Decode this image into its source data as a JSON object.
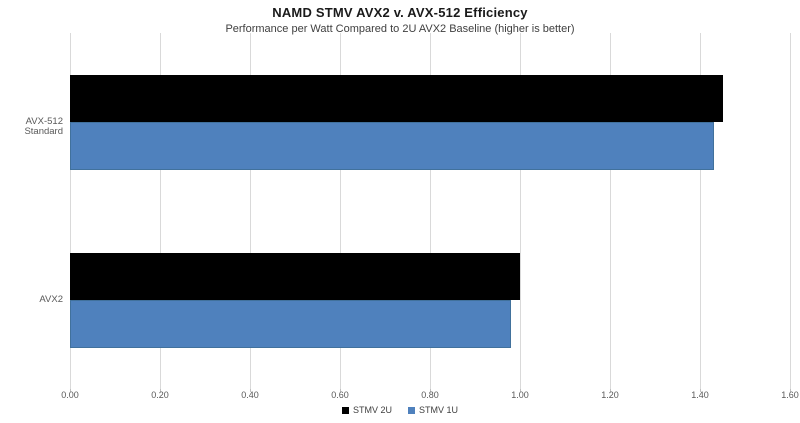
{
  "title": "NAMD STMV AVX2 v. AVX-512 Efficiency",
  "subtitle": "Performance per Watt Compared to 2U AVX2 Baseline (higher is better)",
  "colors": {
    "background": "#ffffff",
    "series_stmv_2u": "#000000",
    "series_stmv_1u": "#4f81bd",
    "series_stmv_1u_border": "#41719c",
    "gridline": "#d9d9d9",
    "axis_text": "#595959",
    "title_text": "#1a1a1a",
    "subtitle_text": "#404040"
  },
  "chart_data": {
    "type": "bar",
    "orientation": "horizontal",
    "title": "NAMD STMV AVX2 v. AVX-512 Efficiency",
    "subtitle": "Performance per Watt Compared to 2U AVX2 Baseline (higher is better)",
    "categories": [
      "AVX-512 Standard",
      "AVX2"
    ],
    "series": [
      {
        "name": "STMV 2U",
        "color": "#000000",
        "border": "#000000",
        "values": [
          1.45,
          1.0
        ]
      },
      {
        "name": "STMV 1U",
        "color": "#4f81bd",
        "border": "#41719c",
        "values": [
          1.43,
          0.98
        ]
      }
    ],
    "xlim": [
      0,
      1.6
    ],
    "xtick_step": 0.2,
    "xticks": [
      "0.00",
      "0.20",
      "0.40",
      "0.60",
      "0.80",
      "1.00",
      "1.20",
      "1.40",
      "1.60"
    ],
    "xlabel": "",
    "ylabel": "",
    "grid": true,
    "legend_position": "bottom-center"
  }
}
